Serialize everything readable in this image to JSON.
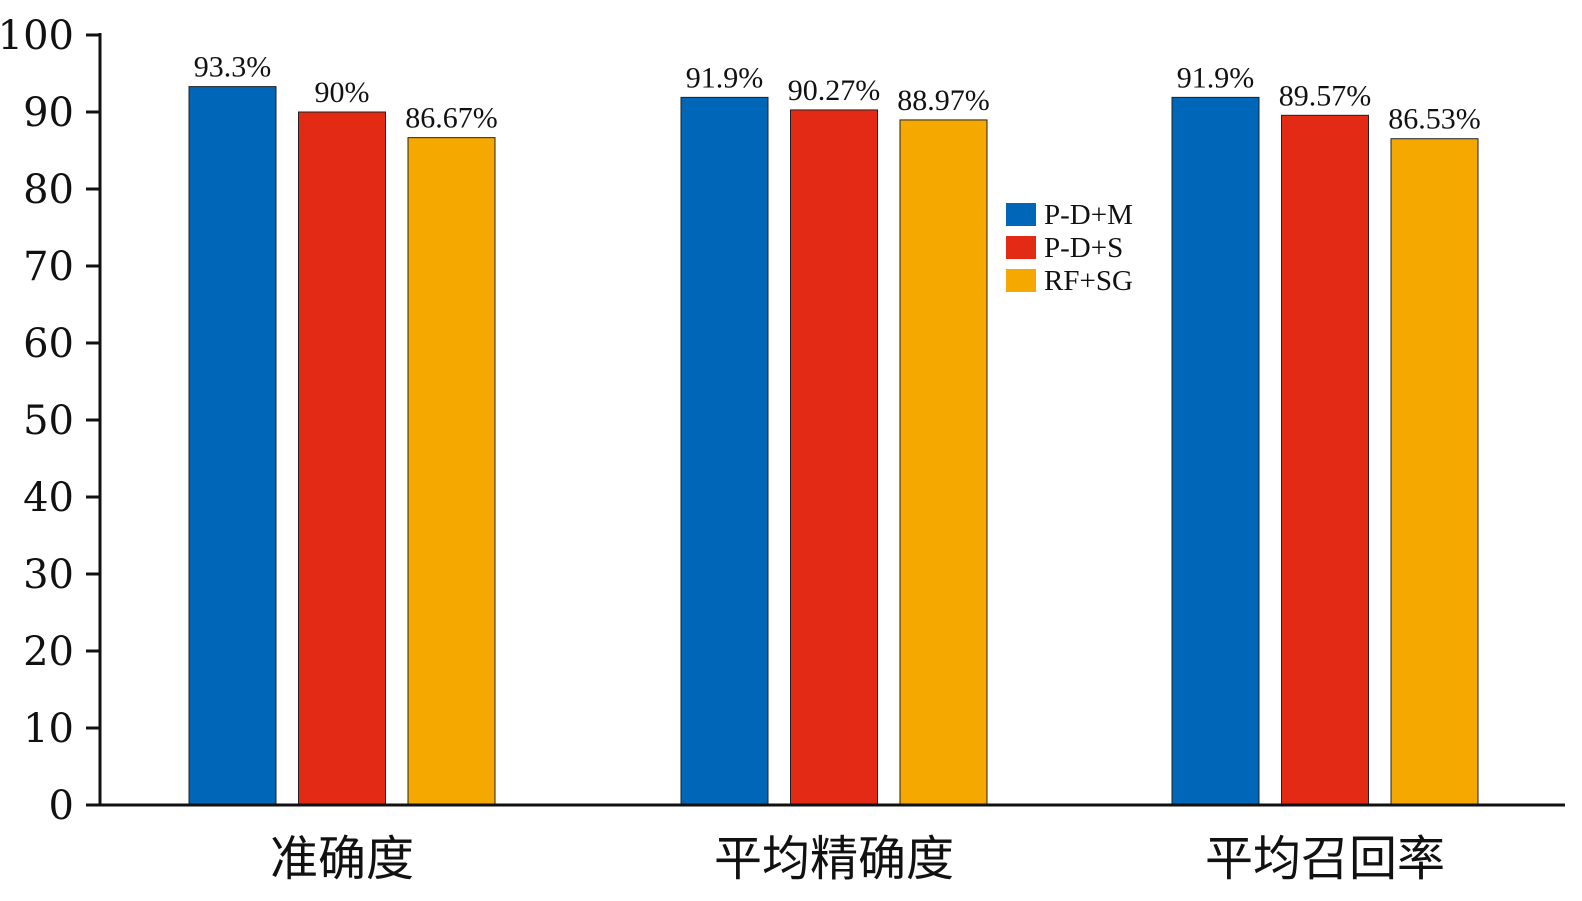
{
  "chart_data": {
    "type": "bar",
    "categories": [
      "准确度",
      "平均精确度",
      "平均召回率"
    ],
    "series": [
      {
        "name": "P-D+M",
        "color": "#0066B8",
        "values": [
          93.3,
          91.9,
          91.9
        ],
        "labels": [
          "93.3%",
          "91.9%",
          "91.9%"
        ]
      },
      {
        "name": "P-D+S",
        "color": "#E32A14",
        "values": [
          90,
          90.27,
          89.57
        ],
        "labels": [
          "90%",
          "90.27%",
          "89.57%"
        ]
      },
      {
        "name": "RF+SG",
        "color": "#F5A800",
        "values": [
          86.67,
          88.97,
          86.53
        ],
        "labels": [
          "86.67%",
          "88.97%",
          "86.53%"
        ]
      }
    ],
    "ylim": [
      0,
      100
    ],
    "yticks": [
      0,
      10,
      20,
      30,
      40,
      50,
      60,
      70,
      80,
      90,
      100
    ],
    "legend_position": "center-right",
    "grid": false
  }
}
